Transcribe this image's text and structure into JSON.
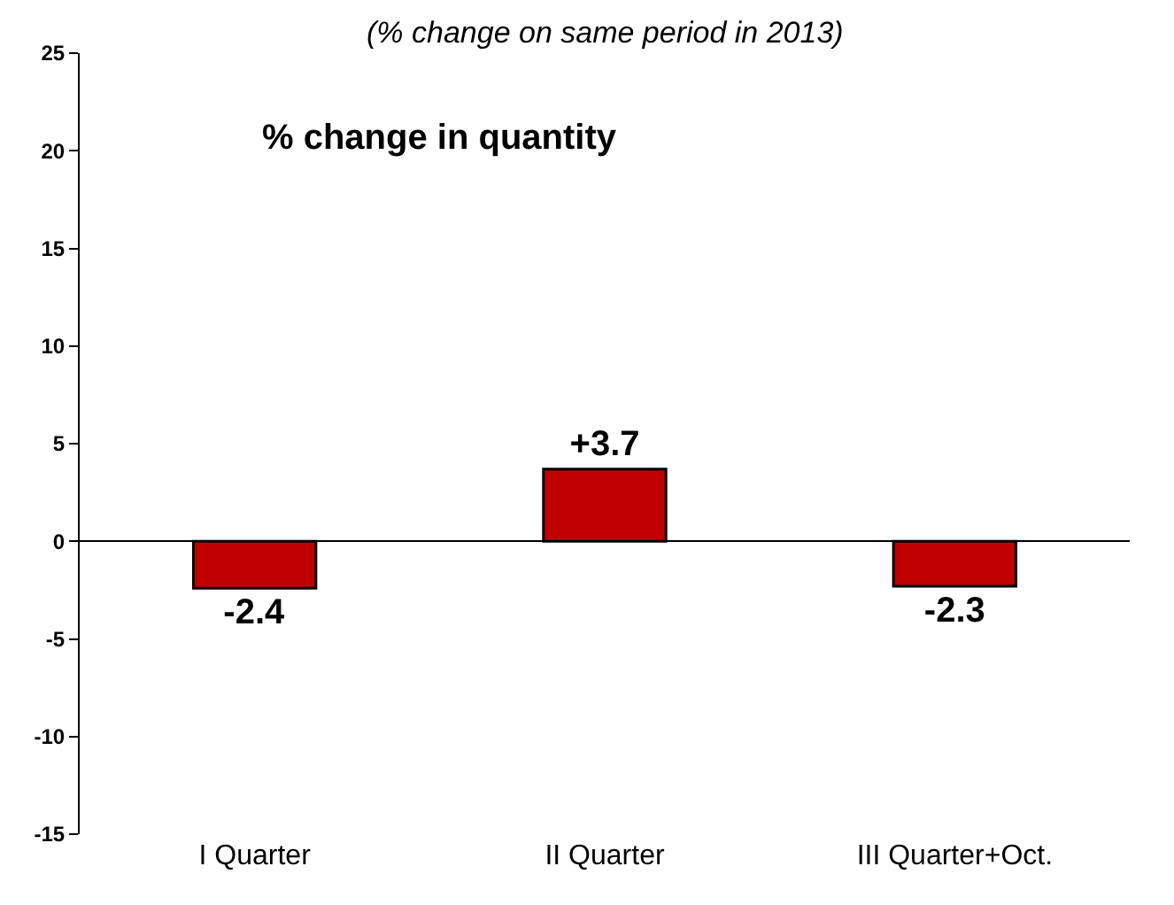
{
  "chart_data": {
    "type": "bar",
    "subtitle": "(% change on same period in 2013)",
    "annotations": [
      "% change in quantity"
    ],
    "categories": [
      "I Quarter",
      "II Quarter",
      "III Quarter+Oct."
    ],
    "values": [
      -2.4,
      3.7,
      -2.3
    ],
    "value_labels": [
      "-2.4",
      "+3.7",
      "-2.3"
    ],
    "color": "#c00000",
    "ylim": [
      -15,
      25
    ],
    "yticks": [
      -15,
      -10,
      -5,
      0,
      5,
      10,
      15,
      20,
      25
    ],
    "legend": false
  }
}
